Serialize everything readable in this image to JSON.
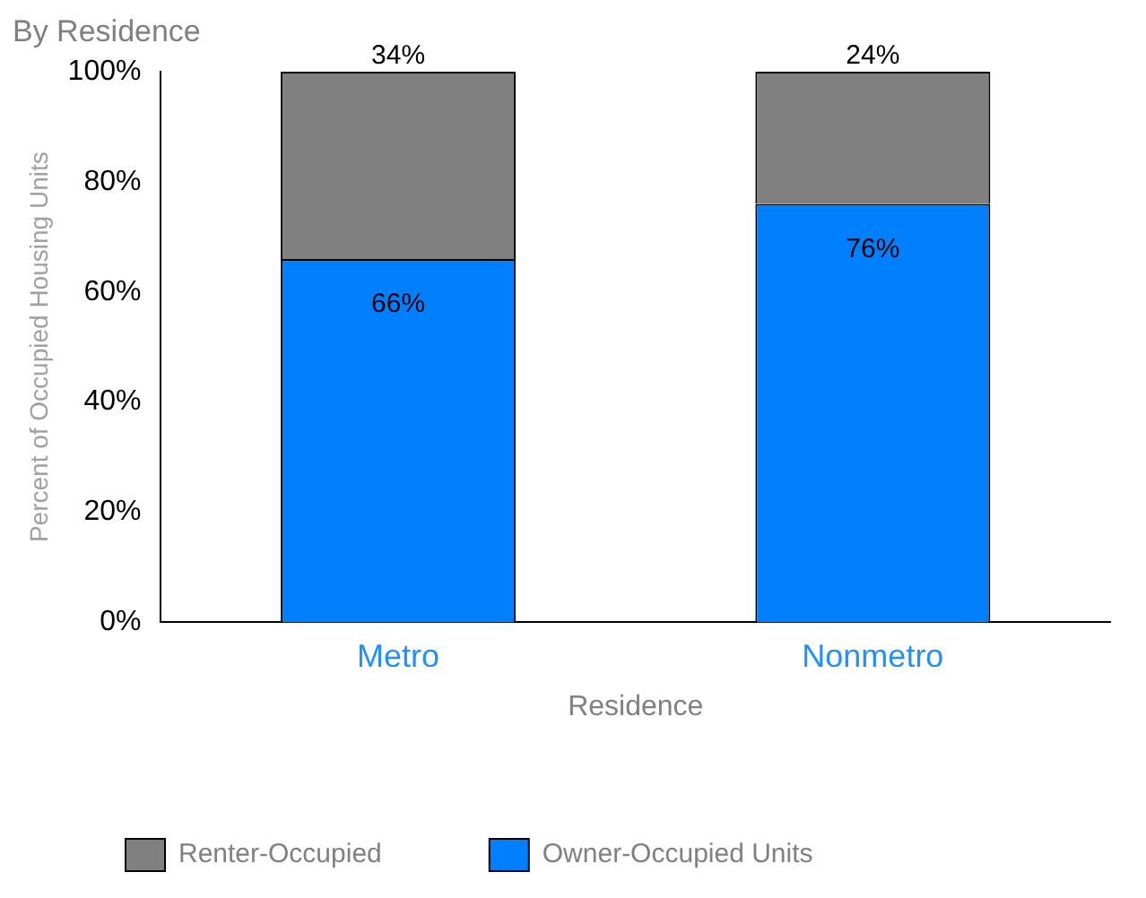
{
  "chart_data": {
    "type": "bar",
    "title": "By Residence",
    "xlabel": "Residence",
    "ylabel": "Percent of Occupied Housing Units",
    "categories": [
      "Metro",
      "Nonmetro"
    ],
    "stacked": true,
    "ylim": [
      0,
      100
    ],
    "yticks": [
      {
        "value": 0,
        "label": "0%"
      },
      {
        "value": 20,
        "label": "20%"
      },
      {
        "value": 40,
        "label": "40%"
      },
      {
        "value": 60,
        "label": "60%"
      },
      {
        "value": 80,
        "label": "80%"
      },
      {
        "value": 100,
        "label": "100%"
      }
    ],
    "series": [
      {
        "name": "Owner-Occupied Units",
        "color": "#0080ff",
        "values": [
          66,
          76
        ],
        "value_labels": [
          "66%",
          "76%"
        ]
      },
      {
        "name": "Renter-Occupied",
        "color": "#808080",
        "values": [
          34,
          24
        ],
        "value_labels": [
          "34%",
          "24%"
        ]
      }
    ],
    "grid": false,
    "legend": "bottom"
  }
}
